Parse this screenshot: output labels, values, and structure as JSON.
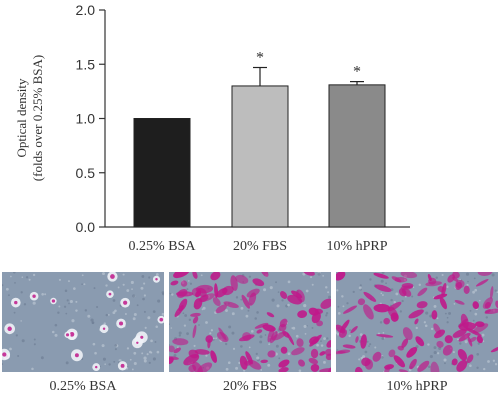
{
  "chart_data": {
    "type": "bar",
    "ylabel_line1": "Optical density",
    "ylabel_line2": "(folds over 0.25% BSA)",
    "ylim": [
      0,
      2.0
    ],
    "yticks": [
      "0.0",
      "0.5",
      "1.0",
      "1.5",
      "2.0"
    ],
    "categories": [
      "0.25% BSA",
      "20% FBS",
      "10% hPRP"
    ],
    "values": [
      1.0,
      1.3,
      1.31
    ],
    "errors": [
      0,
      0.17,
      0.03
    ],
    "significance": [
      "",
      "*",
      "*"
    ],
    "bar_colors": [
      "#1e1e1e",
      "#bdbdbd",
      "#8a8a8a"
    ],
    "grid": false,
    "legend": "none"
  },
  "micrographs": [
    {
      "label": "0.25% BSA",
      "stain": "sparse"
    },
    {
      "label": "20% FBS",
      "stain": "dense"
    },
    {
      "label": "10% hPRP",
      "stain": "dense"
    }
  ],
  "colors": {
    "background_tissue": "#8a9bb0",
    "stain": "#c0188a"
  }
}
